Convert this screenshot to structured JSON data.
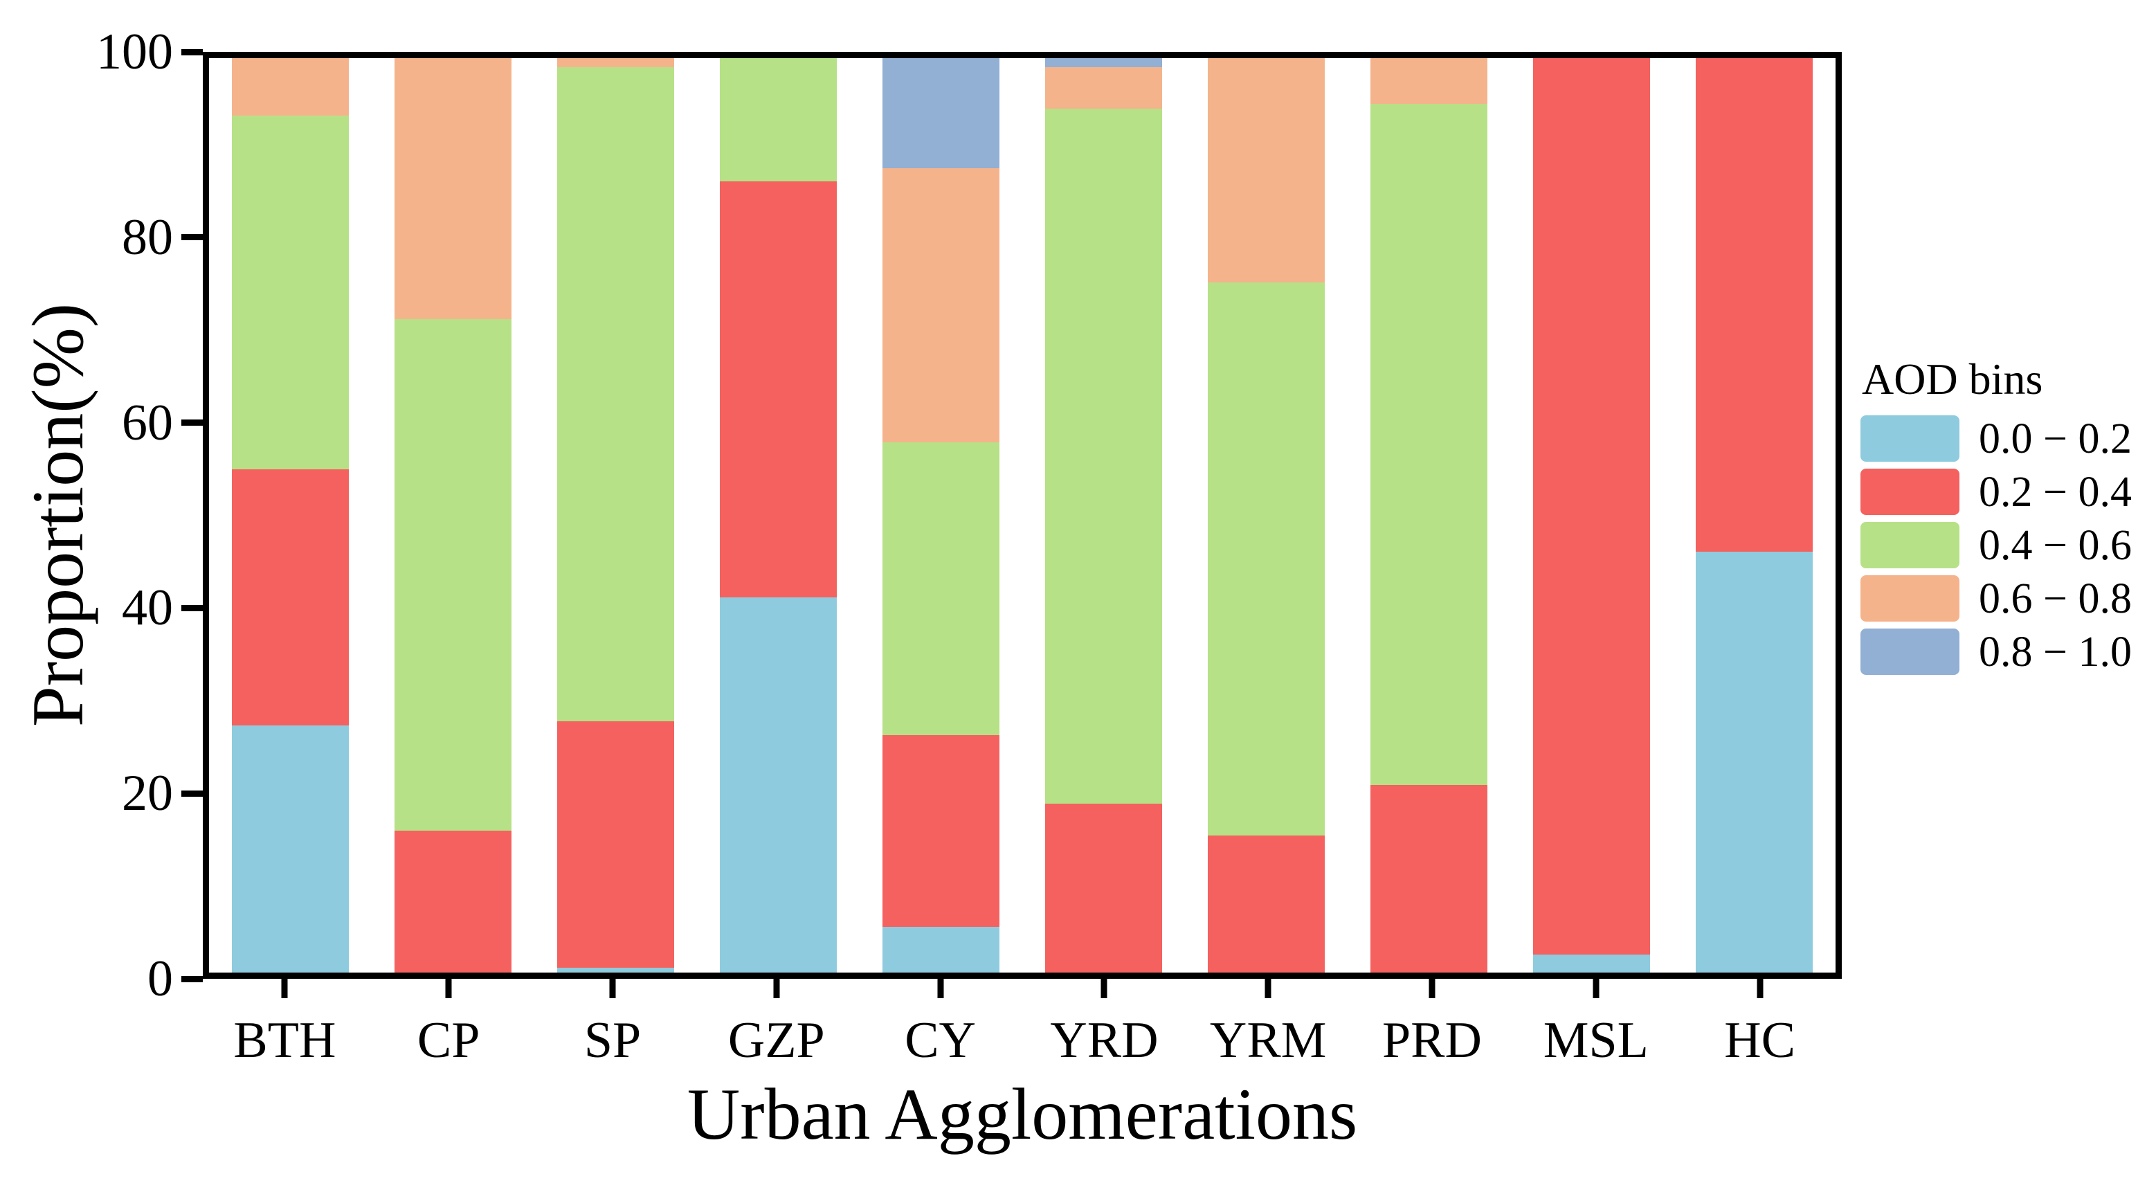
{
  "figure": {
    "background": "#ffffff",
    "axis_color": "#000000"
  },
  "chart_data": {
    "type": "bar",
    "stacked": true,
    "orientation": "vertical",
    "title": "",
    "xlabel": "Urban Agglomerations",
    "ylabel": "Proportion(%)",
    "ylim": [
      0,
      100
    ],
    "yticks": [
      0,
      20,
      40,
      60,
      80,
      100
    ],
    "grid": false,
    "legend_title": "AOD bins",
    "legend_position": "right-outside",
    "categories": [
      "BTH",
      "CP",
      "SP",
      "GZP",
      "CY",
      "YRD",
      "YRM",
      "PRD",
      "MSL",
      "HC"
    ],
    "series": [
      {
        "name": "0.0 − 0.2",
        "color": "#8ECBDE",
        "values": [
          27,
          0,
          0.5,
          41,
          5,
          0,
          0,
          0,
          2,
          46
        ]
      },
      {
        "name": "0.2 − 0.4",
        "color": "#F4615E",
        "values": [
          28,
          15.5,
          27,
          45.5,
          21,
          18.5,
          15,
          20.5,
          98,
          54
        ]
      },
      {
        "name": "0.4 − 0.6",
        "color": "#B6E186",
        "values": [
          38.7,
          56,
          71.5,
          13.5,
          32,
          76,
          60.5,
          74.5,
          0,
          0
        ]
      },
      {
        "name": "0.6 − 0.8",
        "color": "#F5B38C",
        "values": [
          6.3,
          28.5,
          1,
          0,
          30,
          4.5,
          24.5,
          5,
          0,
          0
        ]
      },
      {
        "name": "0.8 − 1.0",
        "color": "#92AFD4",
        "values": [
          0,
          0,
          0,
          0,
          12,
          1,
          0,
          0,
          0,
          0
        ]
      }
    ]
  }
}
